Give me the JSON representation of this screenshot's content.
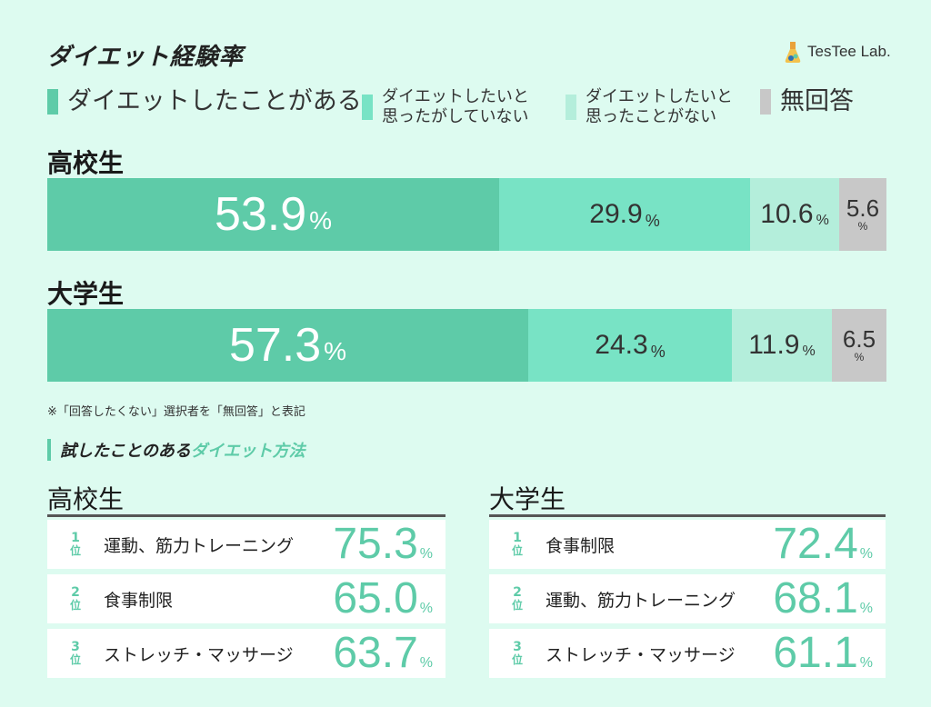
{
  "header": {
    "title": "ダイエット経験率",
    "logo_text": "TesTee Lab."
  },
  "colors": {
    "background": "#ddfbf0",
    "accent": "#5ecba8",
    "series": [
      "#5ecba8",
      "#78e3c5",
      "#b4eedb",
      "#c8c8c8"
    ]
  },
  "legend": [
    {
      "label": "ダイエットしたことがある",
      "size": 27,
      "color": "#5ecba8"
    },
    {
      "label": "ダイエットしたいと\n思ったがしていない",
      "size": 18,
      "color": "#78e3c5"
    },
    {
      "label": "ダイエットしたいと\n思ったことがない",
      "size": 18,
      "color": "#b4eedb"
    },
    {
      "label": "無回答",
      "size": 27,
      "color": "#c8c8c8"
    }
  ],
  "chart_data": {
    "type": "bar",
    "stacked": true,
    "orientation": "horizontal",
    "title": "ダイエット経験率",
    "categories": [
      "高校生",
      "大学生"
    ],
    "series": [
      {
        "name": "ダイエットしたことがある",
        "values": [
          53.9,
          57.3
        ]
      },
      {
        "name": "ダイエットしたいと思ったがしていない",
        "values": [
          29.9,
          24.3
        ]
      },
      {
        "name": "ダイエットしたいと思ったことがない",
        "values": [
          10.6,
          11.9
        ]
      },
      {
        "name": "無回答",
        "values": [
          5.6,
          6.5
        ]
      }
    ],
    "unit": "%"
  },
  "note": "※「回答したくない」選択者を「無回答」と表記",
  "subheading": {
    "part1": "試したことのある",
    "part2": "ダイエット方法"
  },
  "rankings": [
    {
      "group": "高校生",
      "items": [
        {
          "rank": "1",
          "suffix": "位",
          "name": "運動、筋力トレーニング",
          "value": "75.3",
          "unit": "%"
        },
        {
          "rank": "2",
          "suffix": "位",
          "name": "食事制限",
          "value": "65.0",
          "unit": "%"
        },
        {
          "rank": "3",
          "suffix": "位",
          "name": "ストレッチ・マッサージ",
          "value": "63.7",
          "unit": "%"
        }
      ]
    },
    {
      "group": "大学生",
      "items": [
        {
          "rank": "1",
          "suffix": "位",
          "name": "食事制限",
          "value": "72.4",
          "unit": "%"
        },
        {
          "rank": "2",
          "suffix": "位",
          "name": "運動、筋力トレーニング",
          "value": "68.1",
          "unit": "%"
        },
        {
          "rank": "3",
          "suffix": "位",
          "name": "ストレッチ・マッサージ",
          "value": "61.1",
          "unit": "%"
        }
      ]
    }
  ]
}
